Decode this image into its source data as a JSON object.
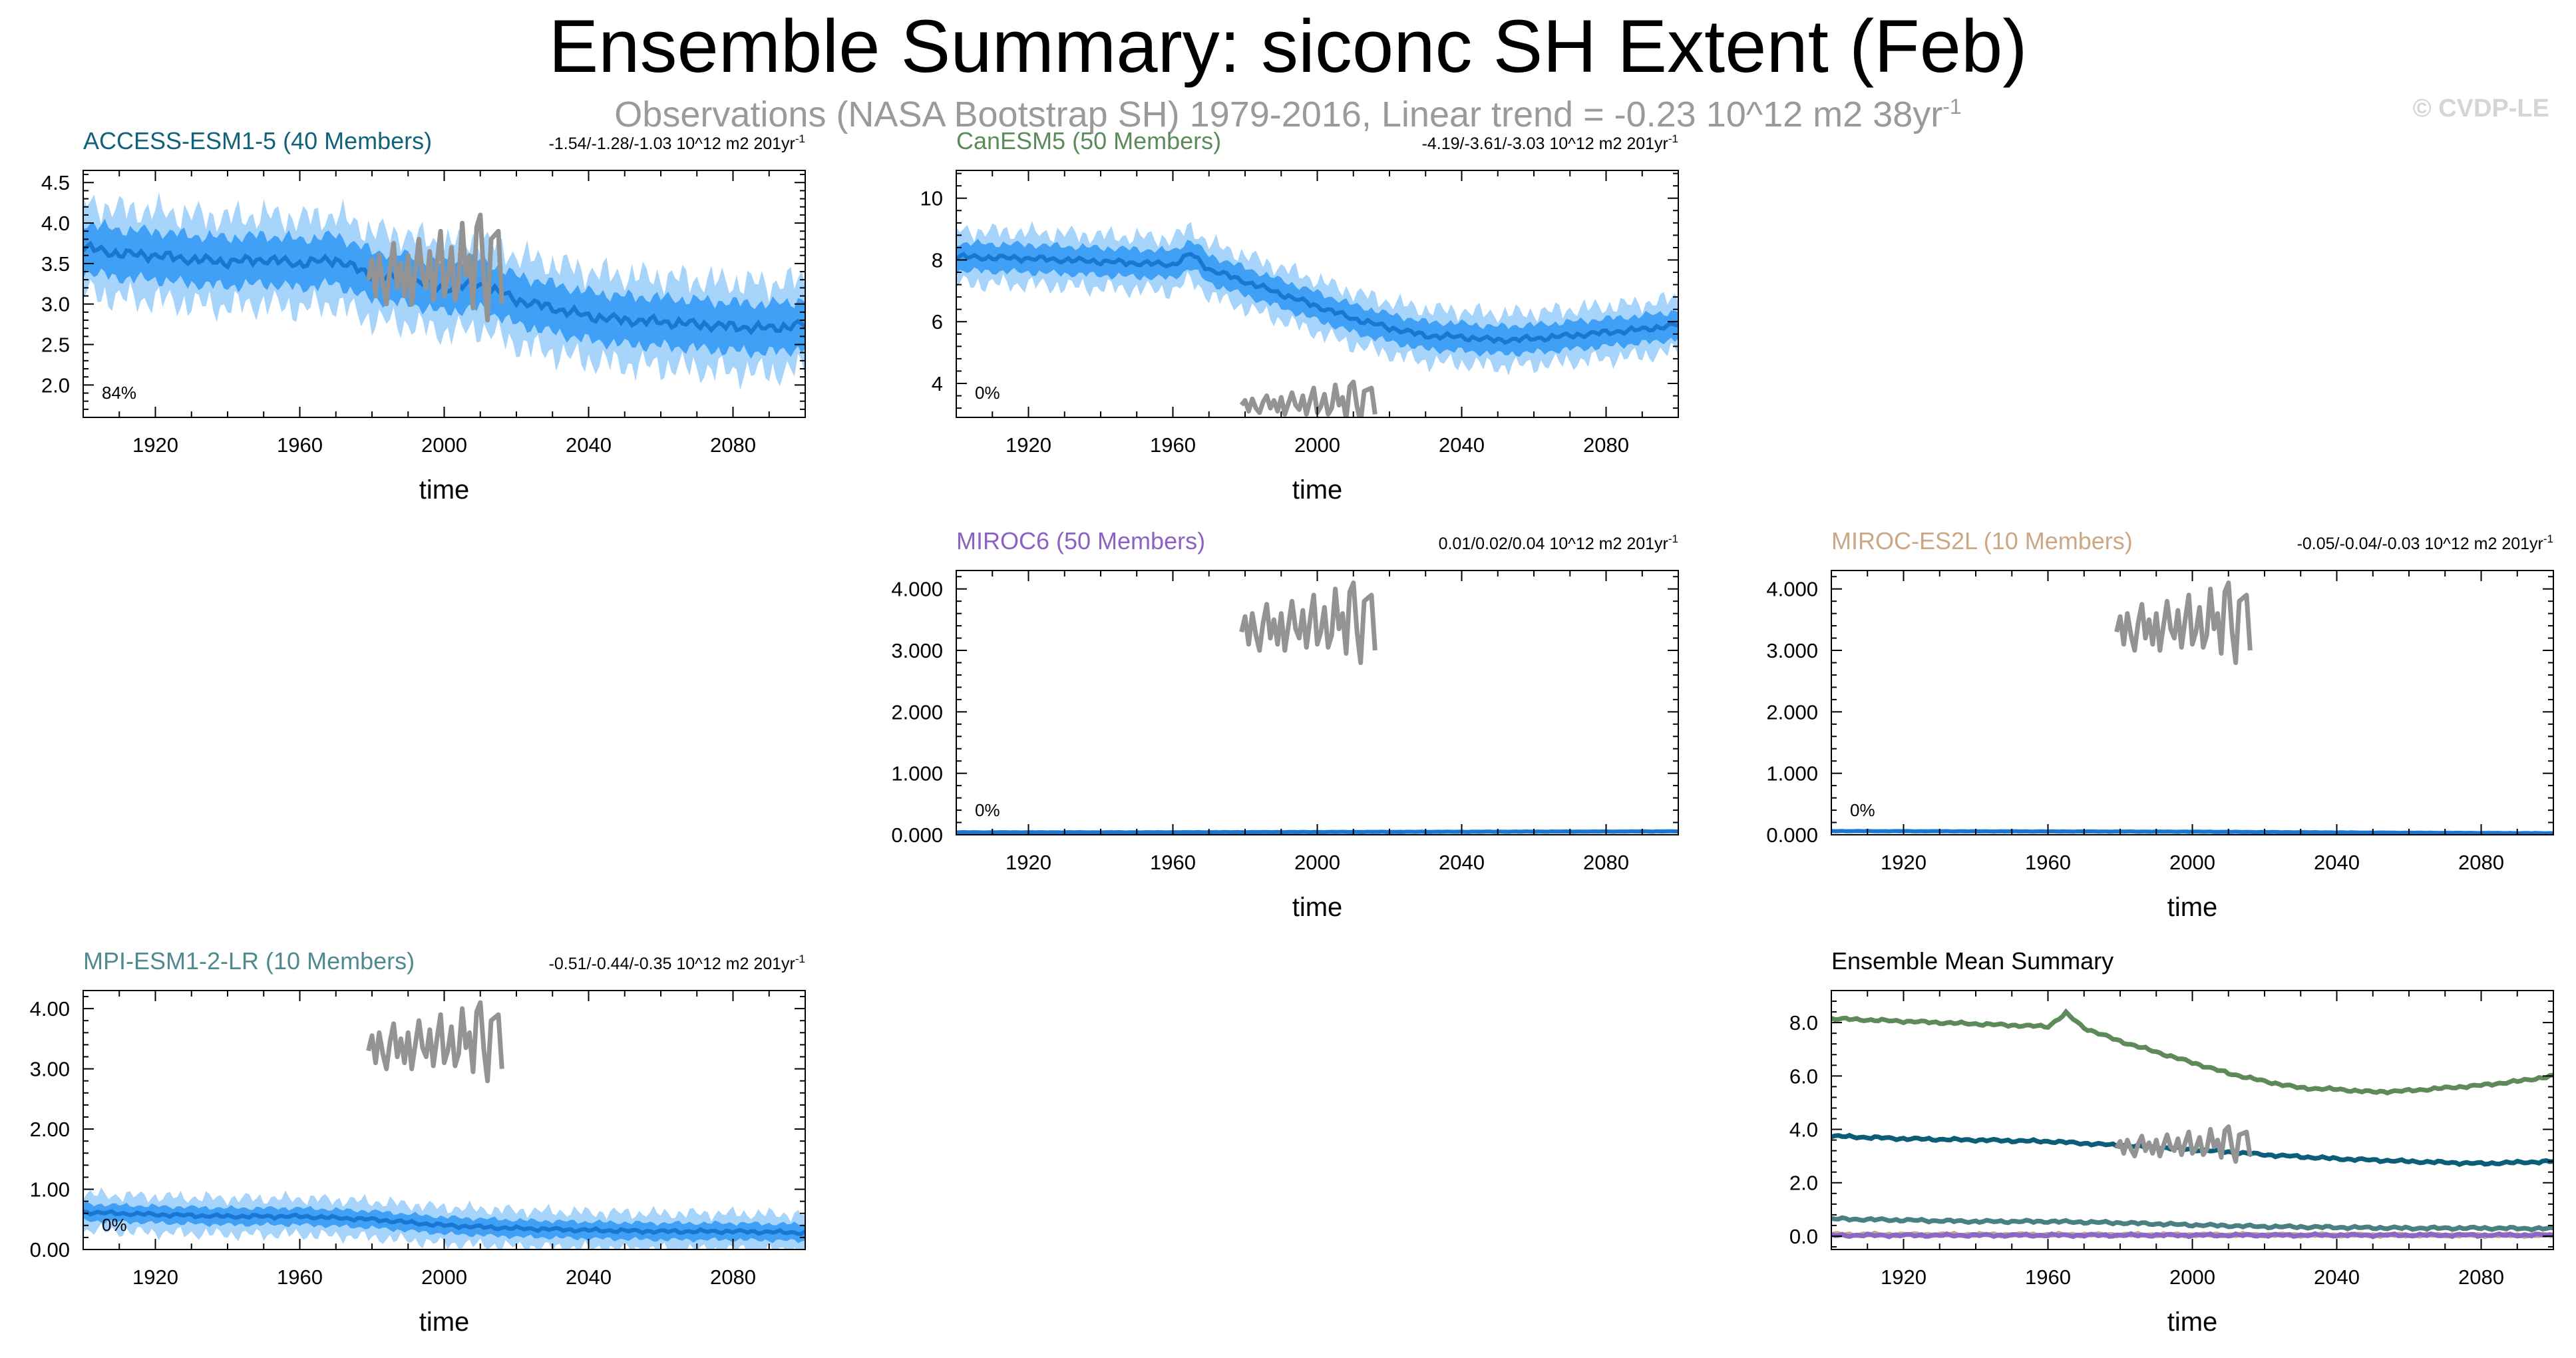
{
  "title": "Ensemble Summary: siconc SH Extent (Feb)",
  "subtitle": {
    "text": "Observations (NASA Bootstrap SH) 1979-2016, Linear trend = -0.23 10^12 m2 38yr",
    "exponent": "-1"
  },
  "copyright": "© CVDP-LE",
  "colors": {
    "band_outer": "#a6d4fa",
    "band_inner": "#3fa0f5",
    "ensemble_mean": "#1976d2",
    "observations": "#939393",
    "title_access": "#12627a",
    "title_canesm": "#5c8a5c",
    "title_miroc6": "#8b62c4",
    "title_miroces": "#cba785",
    "title_mpi": "#4f8a8f",
    "summary_canesm": "#5e8a5a",
    "summary_access": "#0b5d78",
    "summary_mpi": "#4a8082",
    "summary_miroces": "#c8a884",
    "summary_miroc6": "#8a68c8"
  },
  "chart_data": [
    {
      "id": "access",
      "type": "area",
      "title": "ACCESS-ESM1-5 (40 Members)",
      "trend_label": "-1.54/-1.28/-1.03 10^12 m2 201yr",
      "trend_exponent": "-1",
      "xlabel": "time",
      "ylabel": "",
      "xlim": [
        1900,
        2100
      ],
      "ylim": [
        1.6,
        4.65
      ],
      "xticks": [
        "1920",
        "1960",
        "2000",
        "2040",
        "2080"
      ],
      "yticks": [
        "2.0",
        "2.5",
        "3.0",
        "3.5",
        "4.0",
        "4.5"
      ],
      "percent_label": "84%",
      "mean_keyframes": [
        [
          1900,
          3.7
        ],
        [
          1910,
          3.62
        ],
        [
          1920,
          3.6
        ],
        [
          1930,
          3.55
        ],
        [
          1940,
          3.52
        ],
        [
          1950,
          3.55
        ],
        [
          1960,
          3.5
        ],
        [
          1970,
          3.55
        ],
        [
          1980,
          3.35
        ],
        [
          1990,
          3.3
        ],
        [
          2000,
          3.2
        ],
        [
          2010,
          3.25
        ],
        [
          2020,
          3.05
        ],
        [
          2030,
          2.95
        ],
        [
          2040,
          2.85
        ],
        [
          2050,
          2.8
        ],
        [
          2060,
          2.78
        ],
        [
          2070,
          2.75
        ],
        [
          2080,
          2.72
        ],
        [
          2090,
          2.7
        ],
        [
          2100,
          2.75
        ]
      ],
      "inner_halfwidth": 0.3,
      "outer_halfwidth": 0.55,
      "obs": {
        "years": [
          1979,
          2016
        ],
        "values": [
          3.3,
          3.55,
          3.1,
          3.6,
          3.25,
          3.0,
          3.45,
          3.75,
          3.2,
          3.5,
          3.1,
          3.6,
          3.0,
          3.4,
          3.8,
          3.35,
          3.2,
          3.65,
          3.05,
          3.5,
          3.9,
          3.1,
          3.3,
          3.7,
          3.05,
          3.25,
          4.0,
          3.35,
          3.6,
          2.95,
          3.95,
          4.1,
          3.3,
          2.8,
          3.8,
          3.85,
          3.9,
          3.0
        ]
      }
    },
    {
      "id": "canesm",
      "type": "area",
      "title": "CanESM5 (50 Members)",
      "trend_label": "-4.19/-3.61/-3.03 10^12 m2 201yr",
      "trend_exponent": "-1",
      "xlabel": "time",
      "ylabel": "",
      "xlim": [
        1900,
        2100
      ],
      "ylim": [
        2.9,
        10.9
      ],
      "xticks": [
        "1920",
        "1960",
        "2000",
        "2040",
        "2080"
      ],
      "yticks": [
        "4",
        "6",
        "8",
        "10"
      ],
      "percent_label": "0%",
      "mean_keyframes": [
        [
          1900,
          8.1
        ],
        [
          1920,
          8.05
        ],
        [
          1940,
          7.95
        ],
        [
          1960,
          7.85
        ],
        [
          1965,
          8.2
        ],
        [
          1970,
          7.7
        ],
        [
          1980,
          7.3
        ],
        [
          1990,
          6.9
        ],
        [
          2000,
          6.5
        ],
        [
          2010,
          6.1
        ],
        [
          2020,
          5.8
        ],
        [
          2030,
          5.55
        ],
        [
          2040,
          5.5
        ],
        [
          2050,
          5.4
        ],
        [
          2060,
          5.45
        ],
        [
          2070,
          5.55
        ],
        [
          2080,
          5.65
        ],
        [
          2090,
          5.75
        ],
        [
          2100,
          5.9
        ]
      ],
      "inner_halfwidth": 0.45,
      "outer_halfwidth": 0.85,
      "obs": {
        "years": [
          1979,
          2016
        ],
        "values": [
          3.3,
          3.45,
          3.1,
          3.5,
          3.2,
          3.05,
          3.4,
          3.6,
          3.2,
          3.45,
          3.1,
          3.55,
          3.0,
          3.35,
          3.7,
          3.3,
          3.15,
          3.6,
          3.0,
          3.45,
          3.85,
          3.05,
          3.25,
          3.65,
          3.0,
          3.2,
          3.95,
          3.3,
          3.55,
          2.85,
          3.9,
          4.05,
          3.25,
          2.75,
          3.75,
          3.8,
          3.85,
          3.0
        ]
      }
    },
    {
      "id": "miroc6",
      "type": "area",
      "title": "MIROC6 (50 Members)",
      "trend_label": "0.01/0.02/0.04 10^12 m2 201yr",
      "trend_exponent": "-1",
      "xlabel": "time",
      "ylabel": "",
      "xlim": [
        1900,
        2100
      ],
      "ylim": [
        0,
        4.3
      ],
      "xticks": [
        "1920",
        "1960",
        "2000",
        "2040",
        "2080"
      ],
      "yticks": [
        "0.000",
        "1.000",
        "2.000",
        "3.000",
        "4.000"
      ],
      "percent_label": "0%",
      "mean_keyframes": [
        [
          1900,
          0.04
        ],
        [
          1950,
          0.04
        ],
        [
          2000,
          0.045
        ],
        [
          2050,
          0.05
        ],
        [
          2100,
          0.055
        ]
      ],
      "inner_halfwidth": 0.015,
      "outer_halfwidth": 0.03,
      "obs": {
        "years": [
          1979,
          2016
        ],
        "values": [
          3.3,
          3.55,
          3.1,
          3.6,
          3.25,
          3.0,
          3.45,
          3.75,
          3.2,
          3.5,
          3.1,
          3.6,
          3.0,
          3.4,
          3.8,
          3.35,
          3.2,
          3.65,
          3.05,
          3.5,
          3.9,
          3.1,
          3.3,
          3.7,
          3.05,
          3.25,
          4.0,
          3.35,
          3.6,
          2.95,
          3.95,
          4.1,
          3.3,
          2.8,
          3.8,
          3.85,
          3.9,
          3.0
        ]
      }
    },
    {
      "id": "miroces2l",
      "type": "area",
      "title": "MIROC-ES2L (10 Members)",
      "trend_label": "-0.05/-0.04/-0.03 10^12 m2 201yr",
      "trend_exponent": "-1",
      "xlabel": "time",
      "ylabel": "",
      "xlim": [
        1900,
        2100
      ],
      "ylim": [
        0,
        4.3
      ],
      "xticks": [
        "1920",
        "1960",
        "2000",
        "2040",
        "2080"
      ],
      "yticks": [
        "0.000",
        "1.000",
        "2.000",
        "3.000",
        "4.000"
      ],
      "percent_label": "0%",
      "mean_keyframes": [
        [
          1900,
          0.06
        ],
        [
          1950,
          0.055
        ],
        [
          2000,
          0.05
        ],
        [
          2050,
          0.035
        ],
        [
          2100,
          0.025
        ]
      ],
      "inner_halfwidth": 0.015,
      "outer_halfwidth": 0.03,
      "obs": {
        "years": [
          1979,
          2016
        ],
        "values": [
          3.3,
          3.55,
          3.1,
          3.6,
          3.25,
          3.0,
          3.45,
          3.75,
          3.2,
          3.5,
          3.1,
          3.6,
          3.0,
          3.4,
          3.8,
          3.35,
          3.2,
          3.65,
          3.05,
          3.5,
          3.9,
          3.1,
          3.3,
          3.7,
          3.05,
          3.25,
          4.0,
          3.35,
          3.6,
          2.95,
          3.95,
          4.1,
          3.3,
          2.8,
          3.8,
          3.85,
          3.9,
          3.0
        ]
      }
    },
    {
      "id": "mpi",
      "type": "area",
      "title": "MPI-ESM1-2-LR (10 Members)",
      "trend_label": "-0.51/-0.44/-0.35 10^12 m2 201yr",
      "trend_exponent": "-1",
      "xlabel": "time",
      "ylabel": "",
      "xlim": [
        1900,
        2100
      ],
      "ylim": [
        0,
        4.3
      ],
      "xticks": [
        "1920",
        "1960",
        "2000",
        "2040",
        "2080"
      ],
      "yticks": [
        "0.00",
        "1.00",
        "2.00",
        "3.00",
        "4.00"
      ],
      "percent_label": "0%",
      "mean_keyframes": [
        [
          1900,
          0.62
        ],
        [
          1920,
          0.58
        ],
        [
          1940,
          0.55
        ],
        [
          1960,
          0.55
        ],
        [
          1980,
          0.5
        ],
        [
          2000,
          0.4
        ],
        [
          2020,
          0.35
        ],
        [
          2040,
          0.32
        ],
        [
          2060,
          0.3
        ],
        [
          2080,
          0.3
        ],
        [
          2100,
          0.28
        ]
      ],
      "inner_halfwidth": 0.14,
      "outer_halfwidth": 0.3,
      "obs": {
        "years": [
          1979,
          2016
        ],
        "values": [
          3.3,
          3.55,
          3.1,
          3.6,
          3.25,
          3.0,
          3.45,
          3.75,
          3.2,
          3.5,
          3.1,
          3.6,
          3.0,
          3.4,
          3.8,
          3.35,
          3.2,
          3.65,
          3.05,
          3.5,
          3.9,
          3.1,
          3.3,
          3.7,
          3.05,
          3.25,
          4.0,
          3.35,
          3.6,
          2.95,
          3.95,
          4.1,
          3.3,
          2.8,
          3.8,
          3.85,
          3.9,
          3.0
        ]
      }
    },
    {
      "id": "summary",
      "type": "line",
      "title": "Ensemble Mean Summary",
      "xlabel": "time",
      "ylabel": "",
      "xlim": [
        1900,
        2100
      ],
      "ylim": [
        -0.5,
        9.2
      ],
      "xticks": [
        "1920",
        "1960",
        "2000",
        "2040",
        "2080"
      ],
      "yticks": [
        "0.0",
        "2.0",
        "4.0",
        "6.0",
        "8.0"
      ],
      "series": [
        {
          "model": "CanESM5",
          "keyframes": [
            [
              1900,
              8.15
            ],
            [
              1920,
              8.05
            ],
            [
              1940,
              7.95
            ],
            [
              1960,
              7.85
            ],
            [
              1965,
              8.35
            ],
            [
              1970,
              7.8
            ],
            [
              1980,
              7.3
            ],
            [
              1990,
              6.9
            ],
            [
              2000,
              6.5
            ],
            [
              2010,
              6.1
            ],
            [
              2020,
              5.8
            ],
            [
              2030,
              5.55
            ],
            [
              2040,
              5.5
            ],
            [
              2050,
              5.4
            ],
            [
              2060,
              5.45
            ],
            [
              2070,
              5.55
            ],
            [
              2080,
              5.65
            ],
            [
              2090,
              5.8
            ],
            [
              2100,
              6.0
            ]
          ]
        },
        {
          "model": "ACCESS-ESM1-5",
          "keyframes": [
            [
              1900,
              3.75
            ],
            [
              1920,
              3.65
            ],
            [
              1940,
              3.6
            ],
            [
              1960,
              3.55
            ],
            [
              1980,
              3.4
            ],
            [
              2000,
              3.25
            ],
            [
              2020,
              3.05
            ],
            [
              2040,
              2.9
            ],
            [
              2060,
              2.8
            ],
            [
              2080,
              2.72
            ],
            [
              2100,
              2.8
            ]
          ]
        },
        {
          "model": "MPI-ESM1-2-LR",
          "keyframes": [
            [
              1900,
              0.65
            ],
            [
              1920,
              0.6
            ],
            [
              1940,
              0.55
            ],
            [
              1960,
              0.55
            ],
            [
              1980,
              0.5
            ],
            [
              2000,
              0.42
            ],
            [
              2020,
              0.36
            ],
            [
              2040,
              0.33
            ],
            [
              2060,
              0.3
            ],
            [
              2080,
              0.3
            ],
            [
              2100,
              0.28
            ]
          ]
        },
        {
          "model": "MIROC-ES2L",
          "keyframes": [
            [
              1900,
              0.06
            ],
            [
              2000,
              0.05
            ],
            [
              2100,
              0.03
            ]
          ]
        },
        {
          "model": "MIROC6",
          "keyframes": [
            [
              1900,
              0.03
            ],
            [
              2000,
              0.035
            ],
            [
              2100,
              0.04
            ]
          ]
        }
      ],
      "obs": {
        "years": [
          1979,
          2016
        ],
        "values": [
          3.3,
          3.55,
          3.1,
          3.6,
          3.25,
          3.0,
          3.45,
          3.75,
          3.2,
          3.5,
          3.1,
          3.6,
          3.0,
          3.4,
          3.8,
          3.35,
          3.2,
          3.65,
          3.05,
          3.5,
          3.9,
          3.1,
          3.3,
          3.7,
          3.05,
          3.25,
          4.0,
          3.35,
          3.6,
          2.95,
          3.95,
          4.1,
          3.3,
          2.8,
          3.8,
          3.85,
          3.9,
          3.0
        ]
      }
    }
  ]
}
